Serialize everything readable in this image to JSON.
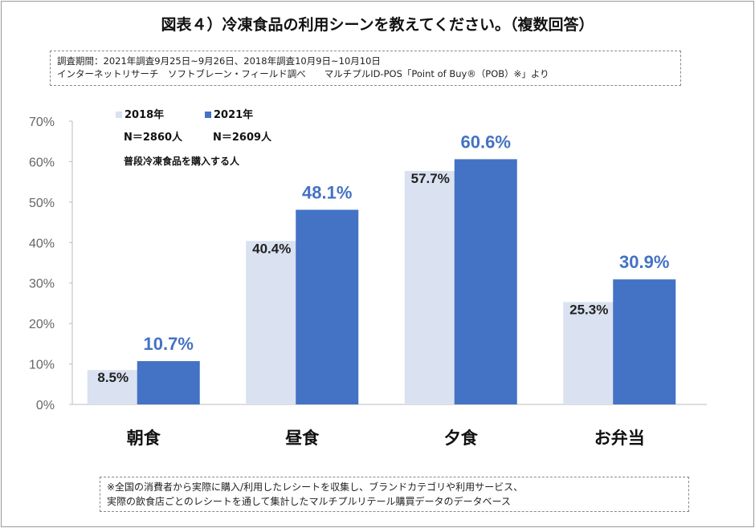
{
  "title": "図表４）冷凍食品の利用シーンを教えてください。（複数回答）",
  "info": {
    "line1": "調査期間：2021年調査9月25日~9月26日、2018年調査10月9日~10月10日",
    "line2": "インターネットリサーチ　ソフトブレーン・フィールド調べ　　マルチプルID-POS「Point of Buy®（POB）※」より"
  },
  "footnote": {
    "line1": "※全国の消費者から実際に購入/利用したレシートを収集し、ブランドカテゴリや利用サービス、",
    "line2": "実際の飲食店ごとのレシートを通して集計したマルチプルリテール購買データのデータベース"
  },
  "legend": {
    "n2018": "N＝2860人",
    "n2021": "N＝2609人",
    "note": "普段冷凍食品を購入する人"
  },
  "chart_data": {
    "type": "bar",
    "categories": [
      "朝食",
      "昼食",
      "夕食",
      "お弁当"
    ],
    "series": [
      {
        "name": "2018年",
        "values": [
          8.5,
          40.4,
          57.7,
          25.3
        ],
        "color": "#dae1f0",
        "labels": [
          "8.5%",
          "40.4%",
          "57.7%",
          "25.3%"
        ]
      },
      {
        "name": "2021年",
        "values": [
          10.7,
          48.1,
          60.6,
          30.9
        ],
        "color": "#4472c4",
        "labels": [
          "10.7%",
          "48.1%",
          "60.6%",
          "30.9%"
        ]
      }
    ],
    "ylim": [
      0,
      70
    ],
    "yticks": [
      "0%",
      "10%",
      "20%",
      "30%",
      "40%",
      "50%",
      "60%",
      "70%"
    ],
    "grid": false,
    "legend_position": "top-left"
  }
}
